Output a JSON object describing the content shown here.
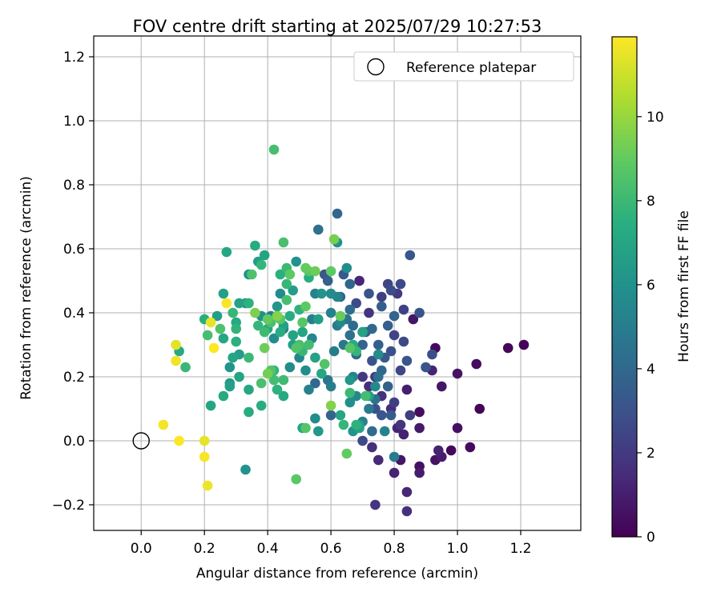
{
  "chart_data": {
    "type": "scatter",
    "title": "FOV centre drift starting at 2025/07/29 10:27:53",
    "xlabel": "Angular distance from reference (arcmin)",
    "ylabel": "Rotation from reference (arcmin)",
    "xlim": [
      -0.15,
      1.39
    ],
    "ylim": [
      -0.28,
      1.265
    ],
    "xticks": [
      0.0,
      0.2,
      0.4,
      0.6,
      0.8,
      1.0,
      1.2
    ],
    "xtick_labels": [
      "0.0",
      "0.2",
      "0.4",
      "0.6",
      "0.8",
      "1.0",
      "1.2"
    ],
    "yticks": [
      -0.2,
      0.0,
      0.2,
      0.4,
      0.6,
      0.8,
      1.0,
      1.2
    ],
    "ytick_labels": [
      "−0.2",
      "0.0",
      "0.2",
      "0.4",
      "0.6",
      "0.8",
      "1.0",
      "1.2"
    ],
    "grid": true,
    "legend": {
      "placement": "top-right",
      "label": "Reference platepar"
    },
    "reference_point": {
      "x": 0.0,
      "y": 0.0
    },
    "colorbar": {
      "label": "Hours from first FF file",
      "colormap": "viridis",
      "range": [
        0,
        11.9
      ],
      "ticks": [
        0,
        2,
        4,
        6,
        8,
        10
      ],
      "tick_labels": [
        "0",
        "2",
        "4",
        "6",
        "8",
        "10"
      ]
    },
    "points": [
      {
        "x": 1.21,
        "y": 0.3,
        "h": 0.1
      },
      {
        "x": 1.16,
        "y": 0.29,
        "h": 0.2
      },
      {
        "x": 1.07,
        "y": 0.1,
        "h": 0.1
      },
      {
        "x": 1.06,
        "y": 0.24,
        "h": 0.4
      },
      {
        "x": 1.04,
        "y": -0.02,
        "h": 0.3
      },
      {
        "x": 1.0,
        "y": 0.21,
        "h": 0.6
      },
      {
        "x": 1.0,
        "y": 0.04,
        "h": 0.5
      },
      {
        "x": 0.98,
        "y": -0.03,
        "h": 0.2
      },
      {
        "x": 0.95,
        "y": 0.17,
        "h": 0.7
      },
      {
        "x": 0.95,
        "y": -0.05,
        "h": 0.9
      },
      {
        "x": 0.94,
        "y": -0.03,
        "h": 1.1
      },
      {
        "x": 0.93,
        "y": 0.29,
        "h": 0.3
      },
      {
        "x": 0.93,
        "y": -0.06,
        "h": 0.6
      },
      {
        "x": 0.92,
        "y": 0.22,
        "h": 1.2
      },
      {
        "x": 0.88,
        "y": 0.09,
        "h": 0.4
      },
      {
        "x": 0.88,
        "y": 0.04,
        "h": 0.8
      },
      {
        "x": 0.88,
        "y": -0.08,
        "h": 0.5
      },
      {
        "x": 0.88,
        "y": -0.1,
        "h": 0.9
      },
      {
        "x": 0.84,
        "y": -0.16,
        "h": 1.3
      },
      {
        "x": 0.84,
        "y": -0.22,
        "h": 1.6
      },
      {
        "x": 0.86,
        "y": 0.38,
        "h": 0.7
      },
      {
        "x": 0.84,
        "y": 0.16,
        "h": 1.0
      },
      {
        "x": 0.83,
        "y": 0.02,
        "h": 1.1
      },
      {
        "x": 0.82,
        "y": -0.06,
        "h": 0.7
      },
      {
        "x": 0.8,
        "y": -0.1,
        "h": 1.2
      },
      {
        "x": 0.74,
        "y": -0.2,
        "h": 1.8
      },
      {
        "x": 0.75,
        "y": -0.06,
        "h": 1.4
      },
      {
        "x": 0.73,
        "y": -0.02,
        "h": 1.6
      },
      {
        "x": 0.81,
        "y": 0.04,
        "h": 1.2
      },
      {
        "x": 0.79,
        "y": 0.1,
        "h": 1.5
      },
      {
        "x": 0.76,
        "y": 0.14,
        "h": 1.7
      },
      {
        "x": 0.74,
        "y": 0.2,
        "h": 2.0
      },
      {
        "x": 0.72,
        "y": 0.17,
        "h": 1.5
      },
      {
        "x": 0.7,
        "y": 0.2,
        "h": 1.9
      },
      {
        "x": 0.69,
        "y": 0.5,
        "h": 1.3
      },
      {
        "x": 0.72,
        "y": 0.4,
        "h": 1.8
      },
      {
        "x": 0.76,
        "y": 0.45,
        "h": 2.2
      },
      {
        "x": 0.78,
        "y": 0.49,
        "h": 2.5
      },
      {
        "x": 0.82,
        "y": 0.49,
        "h": 2.6
      },
      {
        "x": 0.85,
        "y": 0.58,
        "h": 3.2
      },
      {
        "x": 0.88,
        "y": 0.4,
        "h": 3.0
      },
      {
        "x": 0.9,
        "y": 0.23,
        "h": 3.1
      },
      {
        "x": 0.92,
        "y": 0.27,
        "h": 2.8
      },
      {
        "x": 0.83,
        "y": 0.31,
        "h": 2.6
      },
      {
        "x": 0.8,
        "y": 0.33,
        "h": 2.4
      },
      {
        "x": 0.79,
        "y": 0.28,
        "h": 2.9
      },
      {
        "x": 0.77,
        "y": 0.26,
        "h": 3.3
      },
      {
        "x": 0.75,
        "y": 0.3,
        "h": 3.6
      },
      {
        "x": 0.73,
        "y": 0.25,
        "h": 3.0
      },
      {
        "x": 0.71,
        "y": 0.34,
        "h": 3.4
      },
      {
        "x": 0.7,
        "y": 0.3,
        "h": 3.8
      },
      {
        "x": 0.68,
        "y": 0.27,
        "h": 3.9
      },
      {
        "x": 0.67,
        "y": 0.36,
        "h": 4.1
      },
      {
        "x": 0.66,
        "y": 0.33,
        "h": 4.3
      },
      {
        "x": 0.65,
        "y": 0.38,
        "h": 4.6
      },
      {
        "x": 0.64,
        "y": 0.3,
        "h": 4.7
      },
      {
        "x": 0.62,
        "y": 0.36,
        "h": 4.9
      },
      {
        "x": 0.61,
        "y": 0.28,
        "h": 5.0
      },
      {
        "x": 0.6,
        "y": 0.4,
        "h": 5.2
      },
      {
        "x": 0.62,
        "y": 0.45,
        "h": 5.4
      },
      {
        "x": 0.6,
        "y": 0.46,
        "h": 5.6
      },
      {
        "x": 0.58,
        "y": 0.52,
        "h": 3.2
      },
      {
        "x": 0.59,
        "y": 0.5,
        "h": 3.6
      },
      {
        "x": 0.62,
        "y": 0.71,
        "h": 3.9
      },
      {
        "x": 0.56,
        "y": 0.66,
        "h": 4.4
      },
      {
        "x": 0.68,
        "y": 0.43,
        "h": 2.7
      },
      {
        "x": 0.72,
        "y": 0.46,
        "h": 3.1
      },
      {
        "x": 0.76,
        "y": 0.42,
        "h": 3.5
      },
      {
        "x": 0.8,
        "y": 0.39,
        "h": 3.8
      },
      {
        "x": 0.83,
        "y": 0.41,
        "h": 2.3
      },
      {
        "x": 0.81,
        "y": 0.46,
        "h": 2.0
      },
      {
        "x": 0.79,
        "y": 0.47,
        "h": 2.8
      },
      {
        "x": 0.74,
        "y": 0.13,
        "h": 4.4
      },
      {
        "x": 0.76,
        "y": 0.08,
        "h": 3.2
      },
      {
        "x": 0.78,
        "y": 0.17,
        "h": 3.7
      },
      {
        "x": 0.8,
        "y": 0.12,
        "h": 2.2
      },
      {
        "x": 0.82,
        "y": 0.22,
        "h": 2.5
      },
      {
        "x": 0.84,
        "y": 0.25,
        "h": 3.1
      },
      {
        "x": 0.76,
        "y": 0.22,
        "h": 4.0
      },
      {
        "x": 0.72,
        "y": 0.1,
        "h": 4.8
      },
      {
        "x": 0.7,
        "y": 0.06,
        "h": 5.1
      },
      {
        "x": 0.73,
        "y": 0.03,
        "h": 4.2
      },
      {
        "x": 0.74,
        "y": 0.1,
        "h": 2.9
      },
      {
        "x": 0.79,
        "y": 0.08,
        "h": 3.4
      },
      {
        "x": 0.77,
        "y": 0.03,
        "h": 5.3
      },
      {
        "x": 0.8,
        "y": -0.05,
        "h": 4.9
      },
      {
        "x": 0.82,
        "y": 0.05,
        "h": 1.8
      },
      {
        "x": 0.85,
        "y": 0.08,
        "h": 2.1
      },
      {
        "x": 0.7,
        "y": 0.0,
        "h": 2.6
      },
      {
        "x": 0.68,
        "y": 0.14,
        "h": 5.5
      },
      {
        "x": 0.66,
        "y": 0.12,
        "h": 5.9
      },
      {
        "x": 0.67,
        "y": 0.03,
        "h": 6.1
      },
      {
        "x": 0.69,
        "y": 0.05,
        "h": 6.4
      },
      {
        "x": 0.72,
        "y": 0.14,
        "h": 6.6
      },
      {
        "x": 0.66,
        "y": 0.19,
        "h": 6.2
      },
      {
        "x": 0.64,
        "y": 0.05,
        "h": 7.8
      },
      {
        "x": 0.63,
        "y": 0.08,
        "h": 7.0
      },
      {
        "x": 0.65,
        "y": -0.04,
        "h": 9.0
      },
      {
        "x": 0.6,
        "y": 0.11,
        "h": 9.6
      },
      {
        "x": 0.6,
        "y": 0.08,
        "h": 3.8
      },
      {
        "x": 0.59,
        "y": 0.19,
        "h": 4.6
      },
      {
        "x": 0.6,
        "y": 0.17,
        "h": 5.0
      },
      {
        "x": 0.55,
        "y": 0.18,
        "h": 4.0
      },
      {
        "x": 0.56,
        "y": 0.03,
        "h": 6.3
      },
      {
        "x": 0.55,
        "y": 0.07,
        "h": 5.7
      },
      {
        "x": 0.53,
        "y": 0.16,
        "h": 5.2
      },
      {
        "x": 0.52,
        "y": 0.22,
        "h": 5.8
      },
      {
        "x": 0.5,
        "y": 0.26,
        "h": 5.4
      },
      {
        "x": 0.51,
        "y": 0.04,
        "h": 6.8
      },
      {
        "x": 0.52,
        "y": 0.04,
        "h": 8.7
      },
      {
        "x": 0.49,
        "y": -0.12,
        "h": 8.8
      },
      {
        "x": 0.45,
        "y": 0.14,
        "h": 7.2
      },
      {
        "x": 0.43,
        "y": 0.16,
        "h": 7.6
      },
      {
        "x": 0.42,
        "y": 0.19,
        "h": 8.2
      },
      {
        "x": 0.41,
        "y": 0.22,
        "h": 8.6
      },
      {
        "x": 0.38,
        "y": 0.11,
        "h": 7.4
      },
      {
        "x": 0.38,
        "y": 0.18,
        "h": 8.4
      },
      {
        "x": 0.34,
        "y": 0.16,
        "h": 7.1
      },
      {
        "x": 0.34,
        "y": 0.09,
        "h": 7.3
      },
      {
        "x": 0.33,
        "y": -0.09,
        "h": 6.0
      },
      {
        "x": 0.31,
        "y": 0.2,
        "h": 6.9
      },
      {
        "x": 0.28,
        "y": 0.18,
        "h": 6.4
      },
      {
        "x": 0.28,
        "y": 0.17,
        "h": 6.7
      },
      {
        "x": 0.26,
        "y": 0.14,
        "h": 7.2
      },
      {
        "x": 0.29,
        "y": 0.26,
        "h": 7.0
      },
      {
        "x": 0.31,
        "y": 0.27,
        "h": 6.5
      },
      {
        "x": 0.34,
        "y": 0.26,
        "h": 8.0
      },
      {
        "x": 0.28,
        "y": 0.23,
        "h": 6.1
      },
      {
        "x": 0.3,
        "y": 0.31,
        "h": 7.5
      },
      {
        "x": 0.3,
        "y": 0.35,
        "h": 7.7
      },
      {
        "x": 0.3,
        "y": 0.37,
        "h": 7.2
      },
      {
        "x": 0.31,
        "y": 0.43,
        "h": 6.8
      },
      {
        "x": 0.29,
        "y": 0.4,
        "h": 7.9
      },
      {
        "x": 0.25,
        "y": 0.35,
        "h": 8.5
      },
      {
        "x": 0.26,
        "y": 0.32,
        "h": 7.1
      },
      {
        "x": 0.24,
        "y": 0.39,
        "h": 6.6
      },
      {
        "x": 0.2,
        "y": 0.38,
        "h": 7.4
      },
      {
        "x": 0.21,
        "y": 0.33,
        "h": 8.3
      },
      {
        "x": 0.22,
        "y": 0.11,
        "h": 7.0
      },
      {
        "x": 0.26,
        "y": 0.46,
        "h": 6.7
      },
      {
        "x": 0.27,
        "y": 0.59,
        "h": 7.1
      },
      {
        "x": 0.34,
        "y": 0.43,
        "h": 7.6
      },
      {
        "x": 0.33,
        "y": 0.43,
        "h": 6.2
      },
      {
        "x": 0.34,
        "y": 0.52,
        "h": 5.9
      },
      {
        "x": 0.35,
        "y": 0.52,
        "h": 8.5
      },
      {
        "x": 0.36,
        "y": 0.61,
        "h": 7.3
      },
      {
        "x": 0.37,
        "y": 0.56,
        "h": 6.5
      },
      {
        "x": 0.38,
        "y": 0.55,
        "h": 7.8
      },
      {
        "x": 0.39,
        "y": 0.58,
        "h": 6.9
      },
      {
        "x": 0.38,
        "y": 0.39,
        "h": 5.9
      },
      {
        "x": 0.37,
        "y": 0.36,
        "h": 7.8
      },
      {
        "x": 0.39,
        "y": 0.34,
        "h": 8.1
      },
      {
        "x": 0.4,
        "y": 0.35,
        "h": 7.2
      },
      {
        "x": 0.41,
        "y": 0.37,
        "h": 8.4
      },
      {
        "x": 0.42,
        "y": 0.32,
        "h": 5.8
      },
      {
        "x": 0.43,
        "y": 0.42,
        "h": 6.3
      },
      {
        "x": 0.43,
        "y": 0.39,
        "h": 8.6
      },
      {
        "x": 0.44,
        "y": 0.34,
        "h": 7.4
      },
      {
        "x": 0.44,
        "y": 0.46,
        "h": 5.6
      },
      {
        "x": 0.45,
        "y": 0.36,
        "h": 6.7
      },
      {
        "x": 0.46,
        "y": 0.49,
        "h": 7.9
      },
      {
        "x": 0.46,
        "y": 0.44,
        "h": 8.3
      },
      {
        "x": 0.47,
        "y": 0.52,
        "h": 8.9
      },
      {
        "x": 0.44,
        "y": 0.52,
        "h": 7.5
      },
      {
        "x": 0.45,
        "y": 0.62,
        "h": 8.4
      },
      {
        "x": 0.42,
        "y": 0.91,
        "h": 8.3
      },
      {
        "x": 0.46,
        "y": 0.54,
        "h": 8.0
      },
      {
        "x": 0.48,
        "y": 0.47,
        "h": 6.6
      },
      {
        "x": 0.49,
        "y": 0.56,
        "h": 6.0
      },
      {
        "x": 0.5,
        "y": 0.41,
        "h": 7.6
      },
      {
        "x": 0.51,
        "y": 0.37,
        "h": 8.7
      },
      {
        "x": 0.51,
        "y": 0.34,
        "h": 7.0
      },
      {
        "x": 0.52,
        "y": 0.42,
        "h": 8.9
      },
      {
        "x": 0.52,
        "y": 0.54,
        "h": 9.0
      },
      {
        "x": 0.53,
        "y": 0.51,
        "h": 7.4
      },
      {
        "x": 0.53,
        "y": 0.53,
        "h": 8.8
      },
      {
        "x": 0.55,
        "y": 0.53,
        "h": 9.2
      },
      {
        "x": 0.55,
        "y": 0.46,
        "h": 5.3
      },
      {
        "x": 0.57,
        "y": 0.46,
        "h": 6.1
      },
      {
        "x": 0.56,
        "y": 0.38,
        "h": 6.5
      },
      {
        "x": 0.54,
        "y": 0.38,
        "h": 5.1
      },
      {
        "x": 0.54,
        "y": 0.32,
        "h": 5.5
      },
      {
        "x": 0.53,
        "y": 0.3,
        "h": 8.2
      },
      {
        "x": 0.51,
        "y": 0.28,
        "h": 7.9
      },
      {
        "x": 0.5,
        "y": 0.3,
        "h": 8.4
      },
      {
        "x": 0.49,
        "y": 0.29,
        "h": 8.6
      },
      {
        "x": 0.48,
        "y": 0.33,
        "h": 6.9
      },
      {
        "x": 0.47,
        "y": 0.23,
        "h": 5.7
      },
      {
        "x": 0.45,
        "y": 0.19,
        "h": 8.1
      },
      {
        "x": 0.42,
        "y": 0.22,
        "h": 7.7
      },
      {
        "x": 0.4,
        "y": 0.21,
        "h": 9.3
      },
      {
        "x": 0.41,
        "y": 0.39,
        "h": 4.9
      },
      {
        "x": 0.45,
        "y": 0.35,
        "h": 5.0
      },
      {
        "x": 0.48,
        "y": 0.3,
        "h": 6.6
      },
      {
        "x": 0.47,
        "y": 0.39,
        "h": 7.3
      },
      {
        "x": 0.44,
        "y": 0.38,
        "h": 8.7
      },
      {
        "x": 0.58,
        "y": 0.24,
        "h": 8.6
      },
      {
        "x": 0.57,
        "y": 0.21,
        "h": 7.1
      },
      {
        "x": 0.55,
        "y": 0.26,
        "h": 6.8
      },
      {
        "x": 0.6,
        "y": 0.53,
        "h": 8.9
      },
      {
        "x": 0.61,
        "y": 0.63,
        "h": 9.4
      },
      {
        "x": 0.62,
        "y": 0.62,
        "h": 6.0
      },
      {
        "x": 0.63,
        "y": 0.45,
        "h": 4.0
      },
      {
        "x": 0.63,
        "y": 0.39,
        "h": 9.1
      },
      {
        "x": 0.63,
        "y": 0.37,
        "h": 5.5
      },
      {
        "x": 0.66,
        "y": 0.41,
        "h": 4.2
      },
      {
        "x": 0.66,
        "y": 0.49,
        "h": 3.9
      },
      {
        "x": 0.65,
        "y": 0.54,
        "h": 5.8
      },
      {
        "x": 0.64,
        "y": 0.52,
        "h": 3.3
      },
      {
        "x": 0.66,
        "y": 0.29,
        "h": 8.7
      },
      {
        "x": 0.67,
        "y": 0.3,
        "h": 7.3
      },
      {
        "x": 0.68,
        "y": 0.28,
        "h": 7.8
      },
      {
        "x": 0.7,
        "y": 0.34,
        "h": 6.8
      },
      {
        "x": 0.7,
        "y": 0.34,
        "h": 4.5
      },
      {
        "x": 0.71,
        "y": 0.14,
        "h": 8.2
      },
      {
        "x": 0.67,
        "y": 0.2,
        "h": 5.3
      },
      {
        "x": 0.66,
        "y": 0.15,
        "h": 8.0
      },
      {
        "x": 0.68,
        "y": 0.05,
        "h": 7.6
      },
      {
        "x": 0.69,
        "y": 0.04,
        "h": 6.8
      },
      {
        "x": 0.75,
        "y": 0.2,
        "h": 4.3
      },
      {
        "x": 0.75,
        "y": 0.27,
        "h": 5.7
      },
      {
        "x": 0.74,
        "y": 0.17,
        "h": 5.6
      },
      {
        "x": 0.78,
        "y": 0.36,
        "h": 3.6
      },
      {
        "x": 0.73,
        "y": 0.35,
        "h": 4.0
      },
      {
        "x": 0.27,
        "y": 0.43,
        "h": 11.8
      },
      {
        "x": 0.22,
        "y": 0.37,
        "h": 11.5
      },
      {
        "x": 0.23,
        "y": 0.29,
        "h": 11.9
      },
      {
        "x": 0.11,
        "y": 0.3,
        "h": 11.4
      },
      {
        "x": 0.11,
        "y": 0.25,
        "h": 11.6
      },
      {
        "x": 0.07,
        "y": 0.05,
        "h": 11.7
      },
      {
        "x": 0.12,
        "y": 0.0,
        "h": 11.9
      },
      {
        "x": 0.2,
        "y": 0.0,
        "h": 11.5
      },
      {
        "x": 0.2,
        "y": -0.05,
        "h": 11.8
      },
      {
        "x": 0.21,
        "y": -0.14,
        "h": 11.6
      },
      {
        "x": 0.12,
        "y": 0.28,
        "h": 7.2
      },
      {
        "x": 0.14,
        "y": 0.23,
        "h": 7.9
      },
      {
        "x": 0.4,
        "y": 0.38,
        "h": 9.0
      },
      {
        "x": 0.43,
        "y": 0.39,
        "h": 9.6
      },
      {
        "x": 0.39,
        "y": 0.29,
        "h": 9.2
      },
      {
        "x": 0.36,
        "y": 0.4,
        "h": 9.5
      }
    ]
  }
}
